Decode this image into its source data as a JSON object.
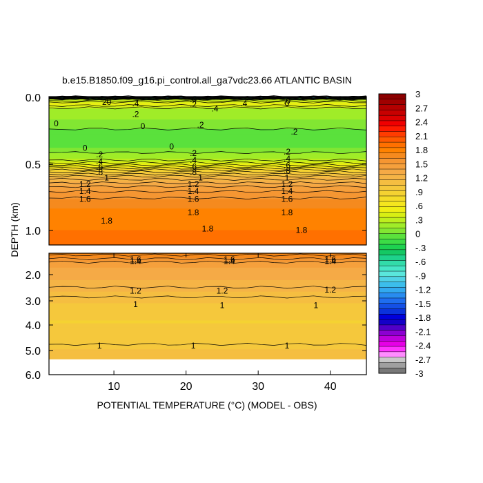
{
  "chart_data": {
    "type": "heatmap",
    "title": "b.e15.B1850.f09_g16.pi_control.all_ga7vdc23.66 ATLANTIC BASIN",
    "xlabel": "POTENTIAL TEMPERATURE (°C) (MODEL - OBS)",
    "ylabel": "DEPTH (km)",
    "xlim": [
      1,
      45
    ],
    "x_ticks": [
      "10",
      "20",
      "30",
      "40"
    ],
    "panels": [
      {
        "name": "upper",
        "ylim": [
          0.0,
          1.1
        ],
        "y_ticks": [
          "0.0",
          "0.5",
          "1.0"
        ],
        "depth_profile": [
          {
            "depth": 0.0,
            "value": -1.5
          },
          {
            "depth": 0.02,
            "value": 0.2
          },
          {
            "depth": 0.05,
            "value": 0.5
          },
          {
            "depth": 0.1,
            "value": 0.2
          },
          {
            "depth": 0.18,
            "value": 0.1
          },
          {
            "depth": 0.3,
            "value": -0.1
          },
          {
            "depth": 0.38,
            "value": 0.0
          },
          {
            "depth": 0.45,
            "value": 0.2
          },
          {
            "depth": 0.5,
            "value": 0.45
          },
          {
            "depth": 0.55,
            "value": 0.85
          },
          {
            "depth": 0.6,
            "value": 1.15
          },
          {
            "depth": 0.68,
            "value": 1.45
          },
          {
            "depth": 0.8,
            "value": 1.7
          },
          {
            "depth": 0.9,
            "value": 1.8
          },
          {
            "depth": 1.0,
            "value": 1.85
          },
          {
            "depth": 1.1,
            "value": 1.85
          }
        ],
        "contour_labels": [
          {
            "x": 9,
            "depth": 0.04,
            "text": "20"
          },
          {
            "x": 13,
            "depth": 0.05,
            "text": ".4"
          },
          {
            "x": 21,
            "depth": 0.02,
            "text": ".0"
          },
          {
            "x": 21,
            "depth": 0.06,
            "text": ".2"
          },
          {
            "x": 24,
            "depth": 0.09,
            "text": ".4"
          },
          {
            "x": 28,
            "depth": 0.05,
            "text": ".4"
          },
          {
            "x": 34,
            "depth": 0.03,
            "text": ".0"
          },
          {
            "x": 34,
            "depth": 0.05,
            "text": "0"
          },
          {
            "x": 13,
            "depth": 0.13,
            "text": ".2"
          },
          {
            "x": 2,
            "depth": 0.2,
            "text": "0"
          },
          {
            "x": 14,
            "depth": 0.22,
            "text": "0"
          },
          {
            "x": 22,
            "depth": 0.21,
            "text": ".2"
          },
          {
            "x": 35,
            "depth": 0.26,
            "text": ".2"
          },
          {
            "x": 6,
            "depth": 0.38,
            "text": "0"
          },
          {
            "x": 18,
            "depth": 0.37,
            "text": "0"
          },
          {
            "x": 8,
            "depth": 0.43,
            "text": ".2"
          },
          {
            "x": 8,
            "depth": 0.48,
            "text": ".4"
          },
          {
            "x": 8,
            "depth": 0.52,
            "text": ".6"
          },
          {
            "x": 8,
            "depth": 0.56,
            "text": ".8"
          },
          {
            "x": 9,
            "depth": 0.6,
            "text": "1"
          },
          {
            "x": 21,
            "depth": 0.42,
            "text": ".2"
          },
          {
            "x": 21,
            "depth": 0.47,
            "text": ".4"
          },
          {
            "x": 21,
            "depth": 0.52,
            "text": ".6"
          },
          {
            "x": 21,
            "depth": 0.56,
            "text": ".8"
          },
          {
            "x": 22,
            "depth": 0.6,
            "text": "1"
          },
          {
            "x": 34,
            "depth": 0.41,
            "text": ".2"
          },
          {
            "x": 34,
            "depth": 0.46,
            "text": ".4"
          },
          {
            "x": 34,
            "depth": 0.51,
            "text": ".6"
          },
          {
            "x": 34,
            "depth": 0.55,
            "text": ".8"
          },
          {
            "x": 34,
            "depth": 0.6,
            "text": "1"
          },
          {
            "x": 6,
            "depth": 0.65,
            "text": "1.2"
          },
          {
            "x": 6,
            "depth": 0.7,
            "text": "1.4"
          },
          {
            "x": 6,
            "depth": 0.76,
            "text": "1.6"
          },
          {
            "x": 21,
            "depth": 0.65,
            "text": "1.2"
          },
          {
            "x": 21,
            "depth": 0.7,
            "text": "1.4"
          },
          {
            "x": 21,
            "depth": 0.76,
            "text": "1.6"
          },
          {
            "x": 34,
            "depth": 0.65,
            "text": "1.2"
          },
          {
            "x": 34,
            "depth": 0.7,
            "text": "1.4"
          },
          {
            "x": 34,
            "depth": 0.76,
            "text": "1.6"
          },
          {
            "x": 21,
            "depth": 0.86,
            "text": "1.8"
          },
          {
            "x": 34,
            "depth": 0.86,
            "text": "1.8"
          },
          {
            "x": 9,
            "depth": 0.92,
            "text": "1.8"
          },
          {
            "x": 23,
            "depth": 0.98,
            "text": "1.8"
          },
          {
            "x": 36,
            "depth": 0.99,
            "text": "1.8"
          }
        ]
      },
      {
        "name": "lower",
        "ylim": [
          1.0,
          6.0
        ],
        "y_ticks": [
          "2.0",
          "3.0",
          "4.0",
          "5.0",
          "6.0"
        ],
        "data_bottom": 5.35,
        "depth_profile": [
          {
            "depth": 1.0,
            "value": 1.75
          },
          {
            "depth": 1.3,
            "value": 1.55
          },
          {
            "depth": 1.5,
            "value": 1.4
          },
          {
            "depth": 2.0,
            "value": 1.3
          },
          {
            "depth": 2.6,
            "value": 1.15
          },
          {
            "depth": 3.2,
            "value": 1.0
          },
          {
            "depth": 3.8,
            "value": 0.92
          },
          {
            "depth": 4.5,
            "value": 0.95
          },
          {
            "depth": 5.0,
            "value": 1.05
          },
          {
            "depth": 5.35,
            "value": 1.1
          }
        ],
        "contour_labels": [
          {
            "x": 13,
            "depth": 1.25,
            "text": "1.6"
          },
          {
            "x": 13,
            "depth": 1.33,
            "text": "1.4"
          },
          {
            "x": 26,
            "depth": 1.25,
            "text": "1.6"
          },
          {
            "x": 26,
            "depth": 1.33,
            "text": "1.4"
          },
          {
            "x": 40,
            "depth": 1.25,
            "text": "1.6"
          },
          {
            "x": 40,
            "depth": 1.33,
            "text": "1.4"
          },
          {
            "x": 13,
            "depth": 2.55,
            "text": "1.2"
          },
          {
            "x": 25,
            "depth": 2.55,
            "text": "1.2"
          },
          {
            "x": 40,
            "depth": 2.5,
            "text": "1.2"
          },
          {
            "x": 13,
            "depth": 3.1,
            "text": "1"
          },
          {
            "x": 25,
            "depth": 3.15,
            "text": "1"
          },
          {
            "x": 38,
            "depth": 3.15,
            "text": "1"
          },
          {
            "x": 8,
            "depth": 4.8,
            "text": "1"
          },
          {
            "x": 21,
            "depth": 4.8,
            "text": "1"
          },
          {
            "x": 34,
            "depth": 4.8,
            "text": "1"
          }
        ]
      }
    ],
    "colorbar": {
      "labels": [
        "3",
        "2.7",
        "2.4",
        "2.1",
        "1.8",
        "1.5",
        "1.2",
        ".9",
        ".6",
        ".3",
        "0",
        "-.3",
        "-.6",
        "-.9",
        "-1.2",
        "-1.5",
        "-1.8",
        "-2.1",
        "-2.4",
        "-2.7",
        "-3"
      ],
      "colors": [
        "#8b0000",
        "#a00000",
        "#b40000",
        "#c80000",
        "#dc0000",
        "#f00000",
        "#ff1a00",
        "#ff3c00",
        "#ff5a00",
        "#ff7000",
        "#ff8200",
        "#f58a1e",
        "#f59632",
        "#f5a03c",
        "#f5aa46",
        "#f5b446",
        "#f5be41",
        "#f5c83c",
        "#f5d232",
        "#f5dc28",
        "#f5e61e",
        "#f0ee14",
        "#d8ee14",
        "#beee1e",
        "#a0ec28",
        "#82e632",
        "#5ae13c",
        "#3cdc46",
        "#1ed250",
        "#14c864",
        "#1ed28c",
        "#32dcaa",
        "#46e6c8",
        "#5ae6dc",
        "#50d2e6",
        "#3cbeeb",
        "#32aaf0",
        "#288cf0",
        "#1e6ef0",
        "#1450e6",
        "#0a32dc",
        "#0000dc",
        "#1400c8",
        "#5000c8",
        "#8c00d2",
        "#be00dc",
        "#e600e6",
        "#ff32ff",
        "#ff8cff",
        "#c8c8c8",
        "#a0a0a0",
        "#787878"
      ]
    }
  }
}
